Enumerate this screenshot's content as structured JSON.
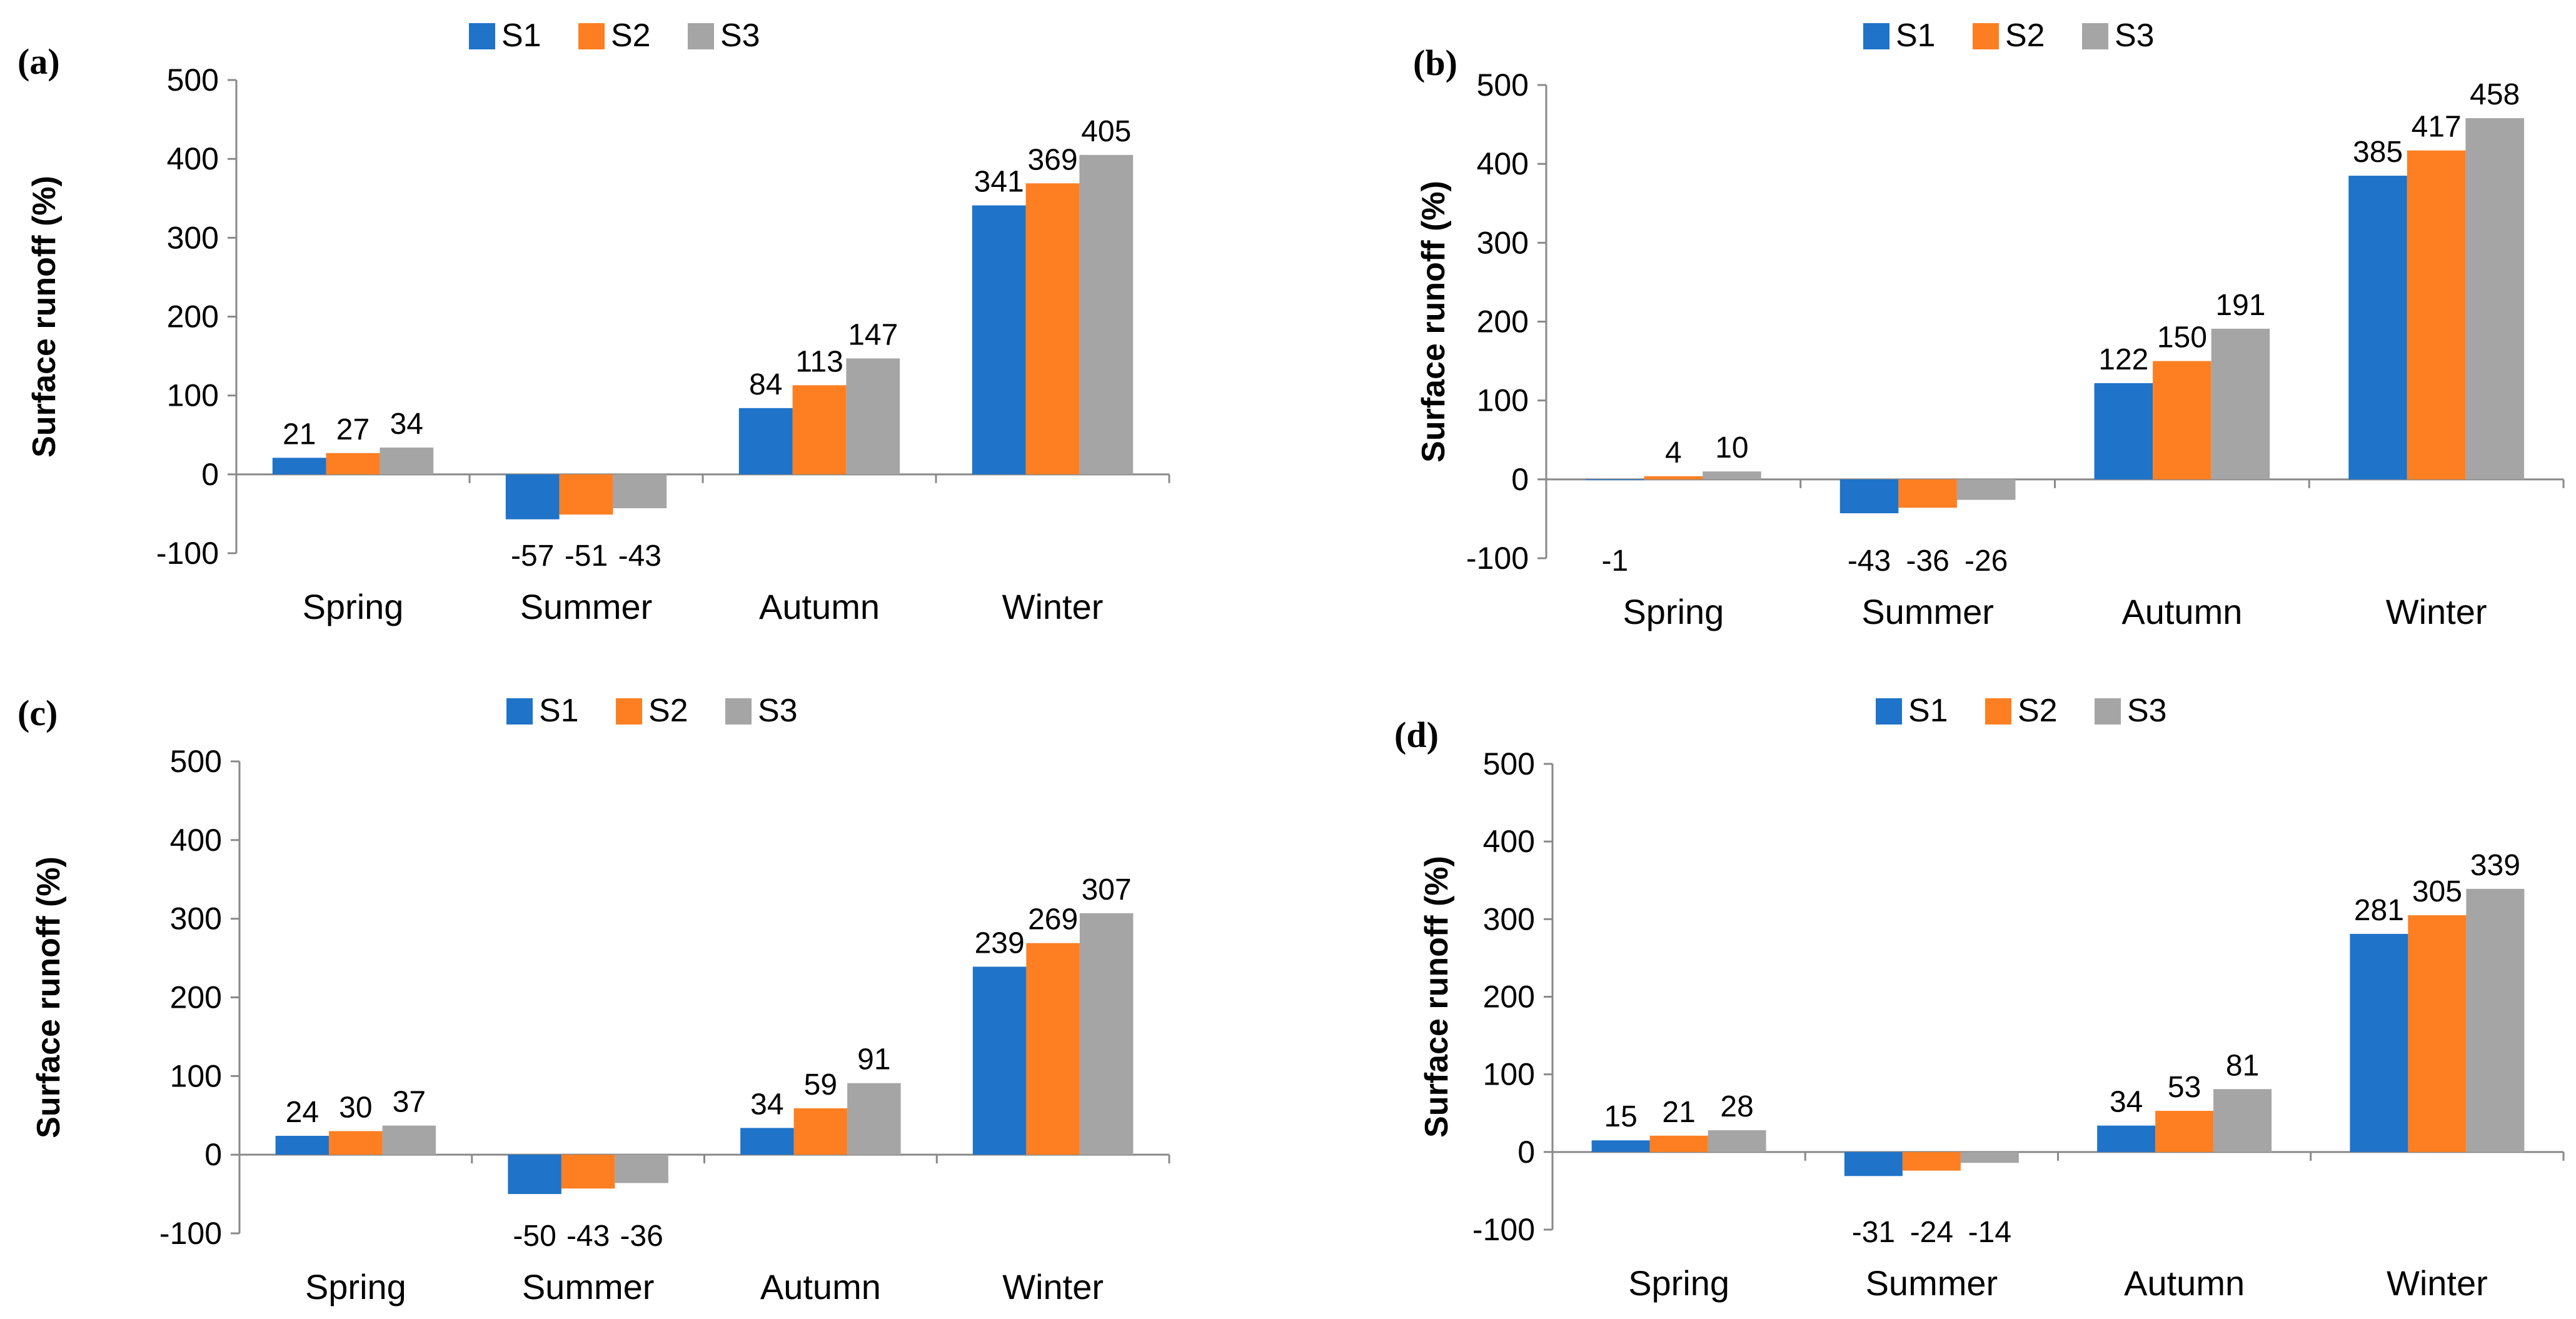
{
  "chart_data": [
    {
      "type": "bar",
      "panel": "(a)",
      "categories": [
        "Spring",
        "Summer",
        "Autumn",
        "Winter"
      ],
      "series": [
        {
          "name": "S1",
          "values": [
            21,
            -57,
            84,
            341
          ]
        },
        {
          "name": "S2",
          "values": [
            27,
            -51,
            113,
            369
          ]
        },
        {
          "name": "S3",
          "values": [
            34,
            -43,
            147,
            405
          ]
        }
      ],
      "ylabel": "Surface runoff (%)",
      "ylim": [
        -100,
        500
      ],
      "yticks": [
        -100,
        0,
        100,
        200,
        300,
        400,
        500
      ],
      "legend": "top-center",
      "grid": false
    },
    {
      "type": "bar",
      "panel": "(b)",
      "categories": [
        "Spring",
        "Summer",
        "Autumn",
        "Winter"
      ],
      "series": [
        {
          "name": "S1",
          "values": [
            -1,
            -43,
            122,
            385
          ]
        },
        {
          "name": "S2",
          "values": [
            4,
            -36,
            150,
            417
          ]
        },
        {
          "name": "S3",
          "values": [
            10,
            -26,
            191,
            458
          ]
        }
      ],
      "ylabel": "Surface runoff (%)",
      "ylim": [
        -100,
        500
      ],
      "yticks": [
        -100,
        0,
        100,
        200,
        300,
        400,
        500
      ],
      "legend": "top-center",
      "grid": false
    },
    {
      "type": "bar",
      "panel": "(c)",
      "categories": [
        "Spring",
        "Summer",
        "Autumn",
        "Winter"
      ],
      "series": [
        {
          "name": "S1",
          "values": [
            24,
            -50,
            34,
            239
          ]
        },
        {
          "name": "S2",
          "values": [
            30,
            -43,
            59,
            269
          ]
        },
        {
          "name": "S3",
          "values": [
            37,
            -36,
            91,
            307
          ]
        }
      ],
      "ylabel": "Surface runoff (%)",
      "ylim": [
        -100,
        500
      ],
      "yticks": [
        -100,
        0,
        100,
        200,
        300,
        400,
        500
      ],
      "legend": "top-center",
      "grid": false
    },
    {
      "type": "bar",
      "panel": "(d)",
      "categories": [
        "Spring",
        "Summer",
        "Autumn",
        "Winter"
      ],
      "series": [
        {
          "name": "S1",
          "values": [
            15,
            -31,
            34,
            281
          ]
        },
        {
          "name": "S2",
          "values": [
            21,
            -24,
            53,
            305
          ]
        },
        {
          "name": "S3",
          "values": [
            28,
            -14,
            81,
            339
          ]
        }
      ],
      "ylabel": "Surface runoff (%)",
      "ylim": [
        -100,
        500
      ],
      "yticks": [
        -100,
        0,
        100,
        200,
        300,
        400,
        500
      ],
      "legend": "top-center",
      "grid": false
    }
  ],
  "colors": {
    "S1": "#1f73c8",
    "S2": "#fd7f22",
    "S3": "#a5a5a5",
    "axis": "#898989"
  }
}
